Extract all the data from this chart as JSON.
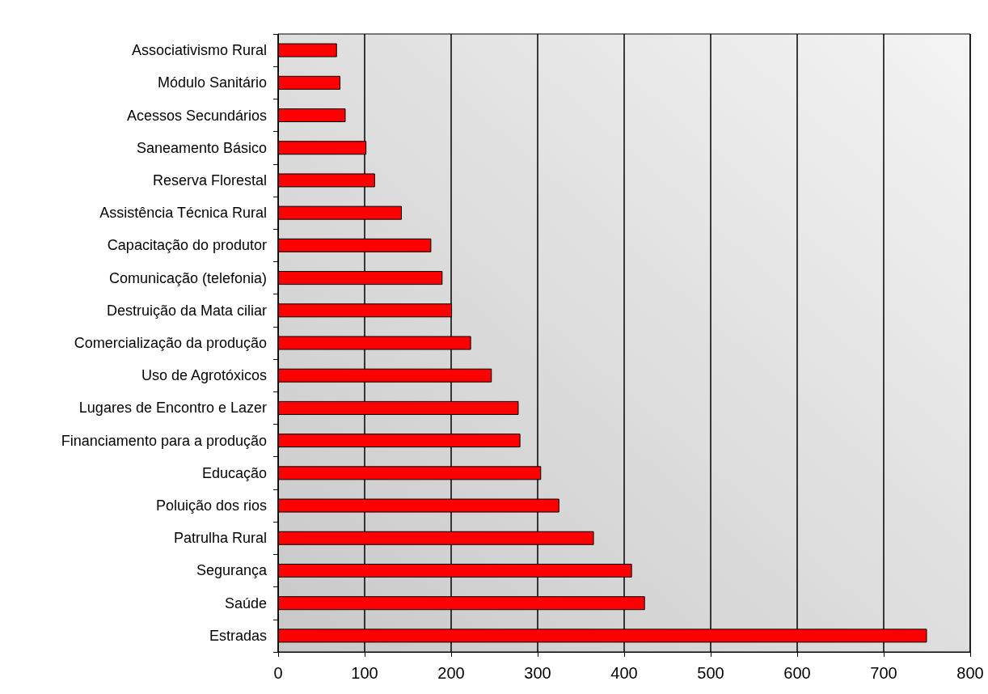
{
  "chart_data": {
    "type": "bar",
    "orientation": "horizontal",
    "categories": [
      "Associativismo Rural",
      "Módulo Sanitário",
      "Acessos Secundários",
      "Saneamento Básico",
      "Reserva Florestal",
      "Assistência Técnica Rural",
      "Capacitação do produtor",
      "Comunicação (telefonia)",
      "Destruição da Mata ciliar",
      "Comercialização da produção",
      "Uso de Agrotóxicos",
      "Lugares de Encontro e Lazer",
      "Financiamento para a produção",
      "Educação",
      "Poluição dos rios",
      "Patrulha Rural",
      "Segurança",
      "Saúde",
      "Estradas"
    ],
    "values": [
      68,
      72,
      78,
      102,
      112,
      143,
      177,
      190,
      201,
      223,
      247,
      278,
      280,
      304,
      325,
      365,
      409,
      424,
      750
    ],
    "color": "#ff0000",
    "xlim": [
      0,
      800
    ],
    "xticks": [
      0,
      100,
      200,
      300,
      400,
      500,
      600,
      700,
      800
    ],
    "grid": "x"
  }
}
